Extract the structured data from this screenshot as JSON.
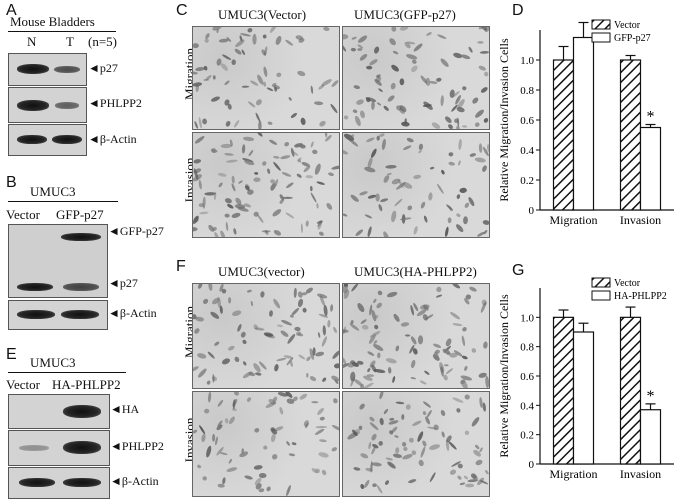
{
  "panelA": {
    "letter": "A",
    "header": "Mouse Bladders",
    "lanes": [
      "N",
      "T"
    ],
    "n": "(n=5)",
    "labels": [
      "p27",
      "PHLPP2",
      "β-Actin"
    ]
  },
  "panelB": {
    "letter": "B",
    "cell": "UMUC3",
    "lanes": [
      "Vector",
      "GFP-p27"
    ],
    "labels": [
      "GFP-p27",
      "p27",
      "β-Actin"
    ]
  },
  "panelE": {
    "letter": "E",
    "cell": "UMUC3",
    "lanes": [
      "Vector",
      "HA-PHLPP2"
    ],
    "labels": [
      "HA",
      "PHLPP2",
      "β-Actin"
    ]
  },
  "panelC": {
    "letter": "C",
    "cols": [
      "UMUC3(Vector)",
      "UMUC3(GFP-p27)"
    ],
    "rows": [
      "Migration",
      "Invasion"
    ]
  },
  "panelF": {
    "letter": "F",
    "cols": [
      "UMUC3(vector)",
      "UMUC3(HA-PHLPP2)"
    ],
    "rows": [
      "Migration",
      "Invasion"
    ]
  },
  "chart_data": [
    {
      "panel": "D",
      "type": "bar",
      "ylabel": "Relative Migration/Invasion Cells",
      "categories": [
        "Migration",
        "Invasion"
      ],
      "ylim": [
        0,
        1.2
      ],
      "yticks": [
        "0",
        "0.2",
        "0.4",
        "0.6",
        "0.8",
        "1.0"
      ],
      "series": [
        {
          "name": "Vector",
          "values": [
            1.0,
            1.0
          ],
          "errors": [
            0.09,
            0.03
          ],
          "pattern": "hatch"
        },
        {
          "name": "GFP-p27",
          "values": [
            1.15,
            0.55
          ],
          "errors": [
            0.1,
            0.02
          ],
          "pattern": "open"
        }
      ],
      "annotations": [
        {
          "text": "*",
          "category": "Invasion",
          "series": "GFP-p27"
        }
      ],
      "legend": "top-right"
    },
    {
      "panel": "G",
      "type": "bar",
      "ylabel": "Relative Migration/Invasion Cells",
      "categories": [
        "Migration",
        "Invasion"
      ],
      "ylim": [
        0,
        1.2
      ],
      "yticks": [
        "0",
        "0.2",
        "0.4",
        "0.6",
        "0.8",
        "1.0"
      ],
      "series": [
        {
          "name": "Vector",
          "values": [
            1.0,
            1.0
          ],
          "errors": [
            0.05,
            0.07
          ],
          "pattern": "hatch"
        },
        {
          "name": "HA-PHLPP2",
          "values": [
            0.9,
            0.37
          ],
          "errors": [
            0.06,
            0.04
          ],
          "pattern": "open"
        }
      ],
      "annotations": [
        {
          "text": "*",
          "category": "Invasion",
          "series": "HA-PHLPP2"
        }
      ],
      "legend": "top-right"
    }
  ]
}
